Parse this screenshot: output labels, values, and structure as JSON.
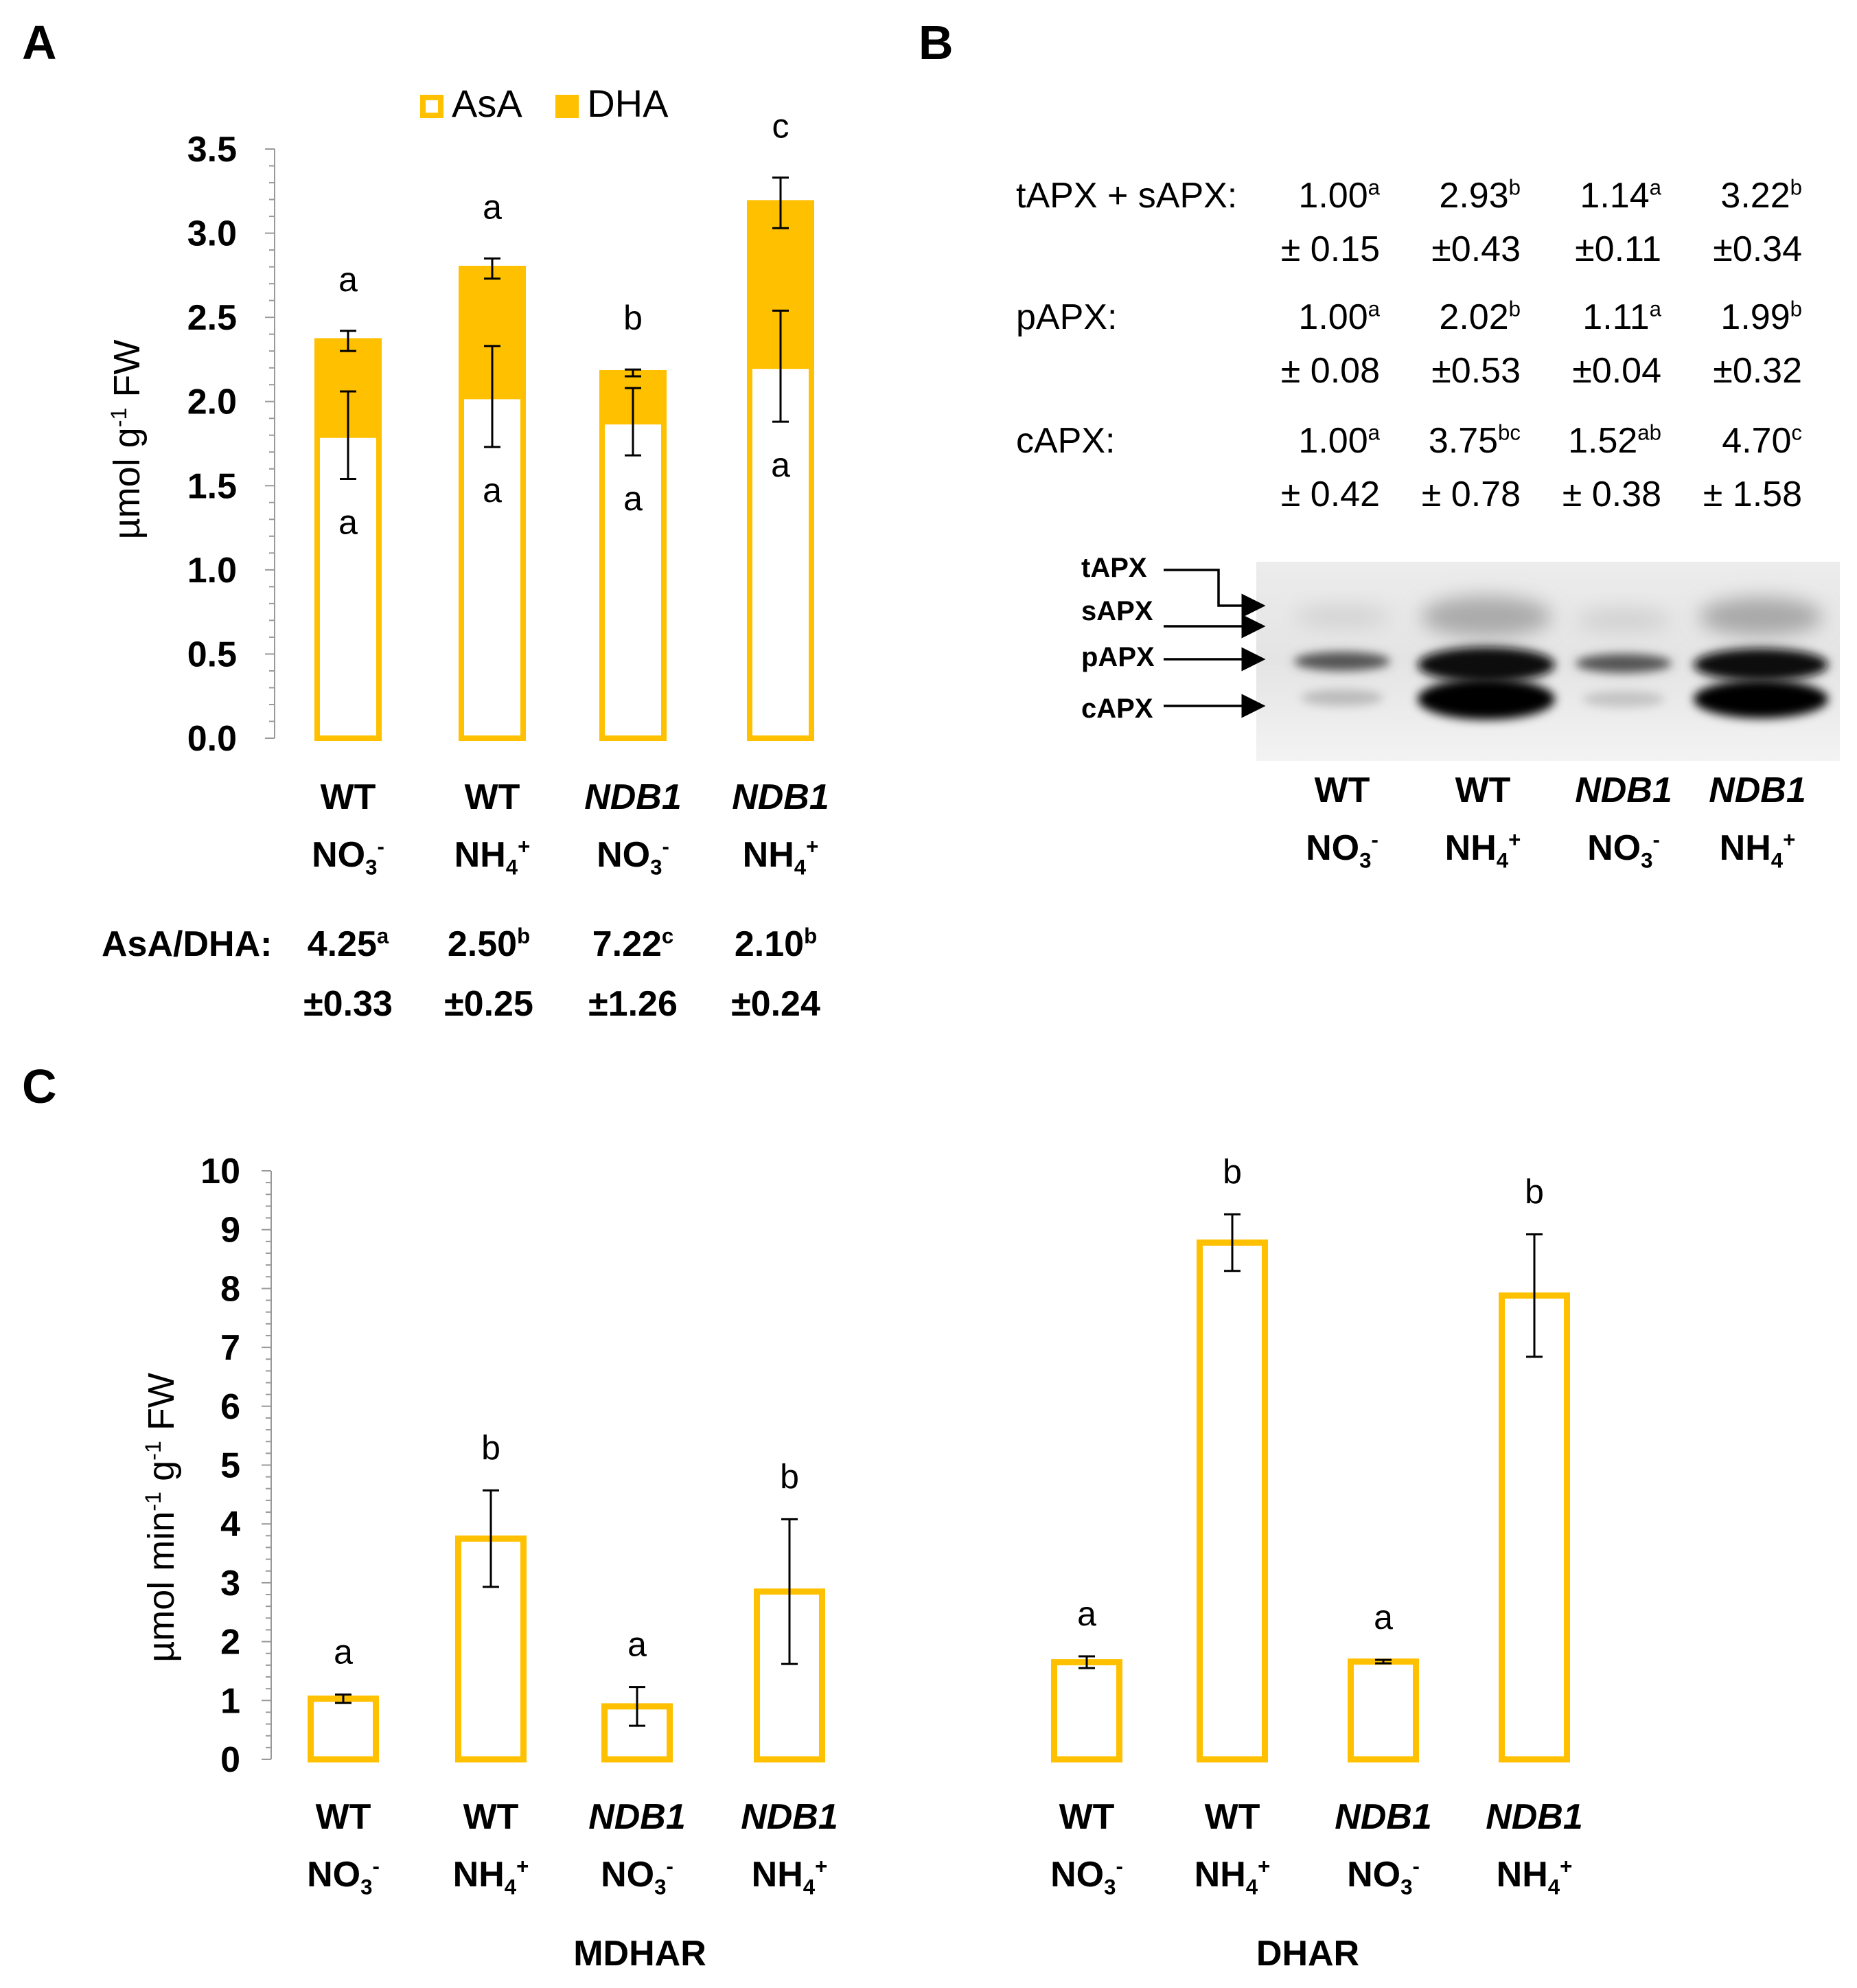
{
  "panels": {
    "a": "A",
    "b": "B",
    "c": "C"
  },
  "colors": {
    "accent": "#FFC000",
    "bar_fill": "#FFFFFF",
    "error": "#000000"
  },
  "groups": [
    {
      "line1": "WT",
      "line2": "NO3",
      "line2_sup": "-",
      "line2_sub": "3",
      "italic": false
    },
    {
      "line1": "WT",
      "line2": "NH4",
      "line2_sup": "+",
      "line2_sub": "4",
      "italic": false
    },
    {
      "line1": "NDB1",
      "line2": "NO3",
      "line2_sup": "-",
      "line2_sub": "3",
      "italic": true
    },
    {
      "line1": "NDB1",
      "line2": "NH4",
      "line2_sup": "+",
      "line2_sub": "4",
      "italic": true
    }
  ],
  "chart_data": [
    {
      "type": "bar",
      "stacked": true,
      "categories": [
        "WT NO3-",
        "WT NH4+",
        "NDB1 NO3-",
        "NDB1 NH4+"
      ],
      "ylabel": "µmol g-1 FW",
      "ylabel_parts": [
        "µmol g",
        "-1",
        " FW"
      ],
      "ylim": [
        0,
        3.5
      ],
      "yticks": [
        "0.0",
        "0.5",
        "1.0",
        "1.5",
        "2.0",
        "2.5",
        "3.0",
        "3.5"
      ],
      "legend": [
        "AsA",
        "DHA"
      ],
      "legend_position": "top",
      "series": [
        {
          "name": "AsA",
          "values": [
            1.8,
            2.03,
            1.88,
            2.21
          ],
          "errors": [
            0.26,
            0.3,
            0.2,
            0.33
          ],
          "letters": [
            "a",
            "a",
            "a",
            "a"
          ]
        },
        {
          "name": "DHA",
          "values": [
            0.56,
            0.76,
            0.29,
            0.97
          ],
          "totals": [
            2.36,
            2.79,
            2.17,
            3.18
          ],
          "errors": [
            0.06,
            0.06,
            0.02,
            0.15
          ],
          "letters": [
            "a",
            "a",
            "b",
            "c"
          ]
        }
      ],
      "ratio_label": "AsA/DHA:",
      "ratio": [
        {
          "value": "4.25",
          "sup": "a",
          "sd": "±0.33"
        },
        {
          "value": "2.50",
          "sup": "b",
          "sd": "±0.25"
        },
        {
          "value": "7.22",
          "sup": "c",
          "sd": "±1.26"
        },
        {
          "value": "2.10",
          "sup": "b",
          "sd": "±0.24"
        }
      ]
    },
    {
      "type": "table",
      "rows": [
        {
          "label": "tAPX + sAPX:",
          "cells": [
            {
              "value": "1.00",
              "sup": "a",
              "sd": "± 0.15"
            },
            {
              "value": "2.93",
              "sup": "b",
              "sd": "±0.43"
            },
            {
              "value": "1.14",
              "sup": "a",
              "sd": "±0.11"
            },
            {
              "value": "3.22",
              "sup": "b",
              "sd": "±0.34"
            }
          ]
        },
        {
          "label": "pAPX:",
          "cells": [
            {
              "value": "1.00",
              "sup": "a",
              "sd": "± 0.08"
            },
            {
              "value": "2.02",
              "sup": "b",
              "sd": "±0.53"
            },
            {
              "value": "1.11",
              "sup": "a",
              "sd": "±0.04"
            },
            {
              "value": "1.99",
              "sup": "b",
              "sd": "±0.32"
            }
          ]
        },
        {
          "label": "cAPX:",
          "cells": [
            {
              "value": "1.00",
              "sup": "a",
              "sd": "± 0.42"
            },
            {
              "value": "3.75",
              "sup": "bc",
              "sd": "± 0.78"
            },
            {
              "value": "1.52",
              "sup": "ab",
              "sd": "± 0.38"
            },
            {
              "value": "4.70",
              "sup": "c",
              "sd": "± 1.58"
            }
          ]
        }
      ],
      "blot_labels": [
        "tAPX",
        "sAPX",
        "pAPX",
        "cAPX"
      ]
    },
    {
      "type": "bar",
      "groups": [
        "MDHAR",
        "DHAR"
      ],
      "categories": [
        "WT NO3-",
        "WT NH4+",
        "NDB1 NO3-",
        "NDB1 NH4+"
      ],
      "ylabel_parts": [
        "µmol min",
        "-1",
        " g",
        "-1",
        " FW"
      ],
      "ylim": [
        0,
        10
      ],
      "yticks": [
        "0",
        "1",
        "2",
        "3",
        "4",
        "5",
        "6",
        "7",
        "8",
        "9",
        "10"
      ],
      "series": [
        {
          "name": "MDHAR",
          "values": [
            1.03,
            3.75,
            0.9,
            2.85
          ],
          "errors": [
            0.07,
            0.82,
            0.33,
            1.23
          ],
          "letters": [
            "a",
            "b",
            "a",
            "b"
          ]
        },
        {
          "name": "DHAR",
          "values": [
            1.65,
            8.78,
            1.66,
            7.88
          ],
          "errors": [
            0.1,
            0.48,
            0.03,
            1.04
          ],
          "letters": [
            "a",
            "b",
            "a",
            "b"
          ]
        }
      ]
    }
  ]
}
